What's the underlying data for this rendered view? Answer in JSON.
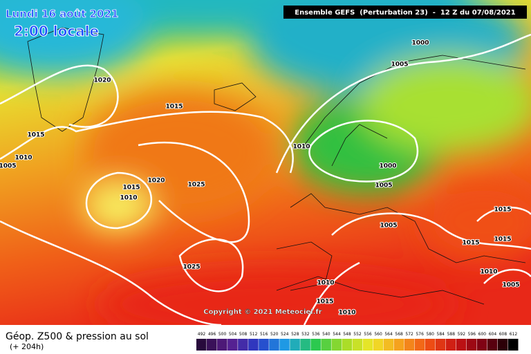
{
  "header": {
    "date": "Lundi 16 août 2021",
    "time": "2:00 locale",
    "model": "Ensemble GEFS  (Perturbation 23)  -  12 Z du 07/08/2021"
  },
  "copyright": "Copyright © 2021 Meteociel.fr",
  "footer": {
    "title": "Géop. Z500 & pression au sol",
    "lead": "(+ 204h)"
  },
  "isobar_labels": [
    "1000",
    "1005",
    "1020",
    "1015",
    "1015",
    "1010",
    "1005",
    "1010",
    "1000",
    "1005",
    "1020",
    "1025",
    "1015",
    "1010",
    "1005",
    "1015",
    "1015",
    "1015",
    "1025",
    "1010",
    "1010",
    "1005",
    "1015",
    "1010"
  ],
  "scale": [
    492,
    496,
    500,
    504,
    508,
    512,
    516,
    520,
    524,
    528,
    532,
    536,
    540,
    544,
    548,
    552,
    556,
    560,
    564,
    568,
    572,
    576,
    580,
    584,
    588,
    592,
    596,
    600,
    604,
    608,
    612
  ]
}
